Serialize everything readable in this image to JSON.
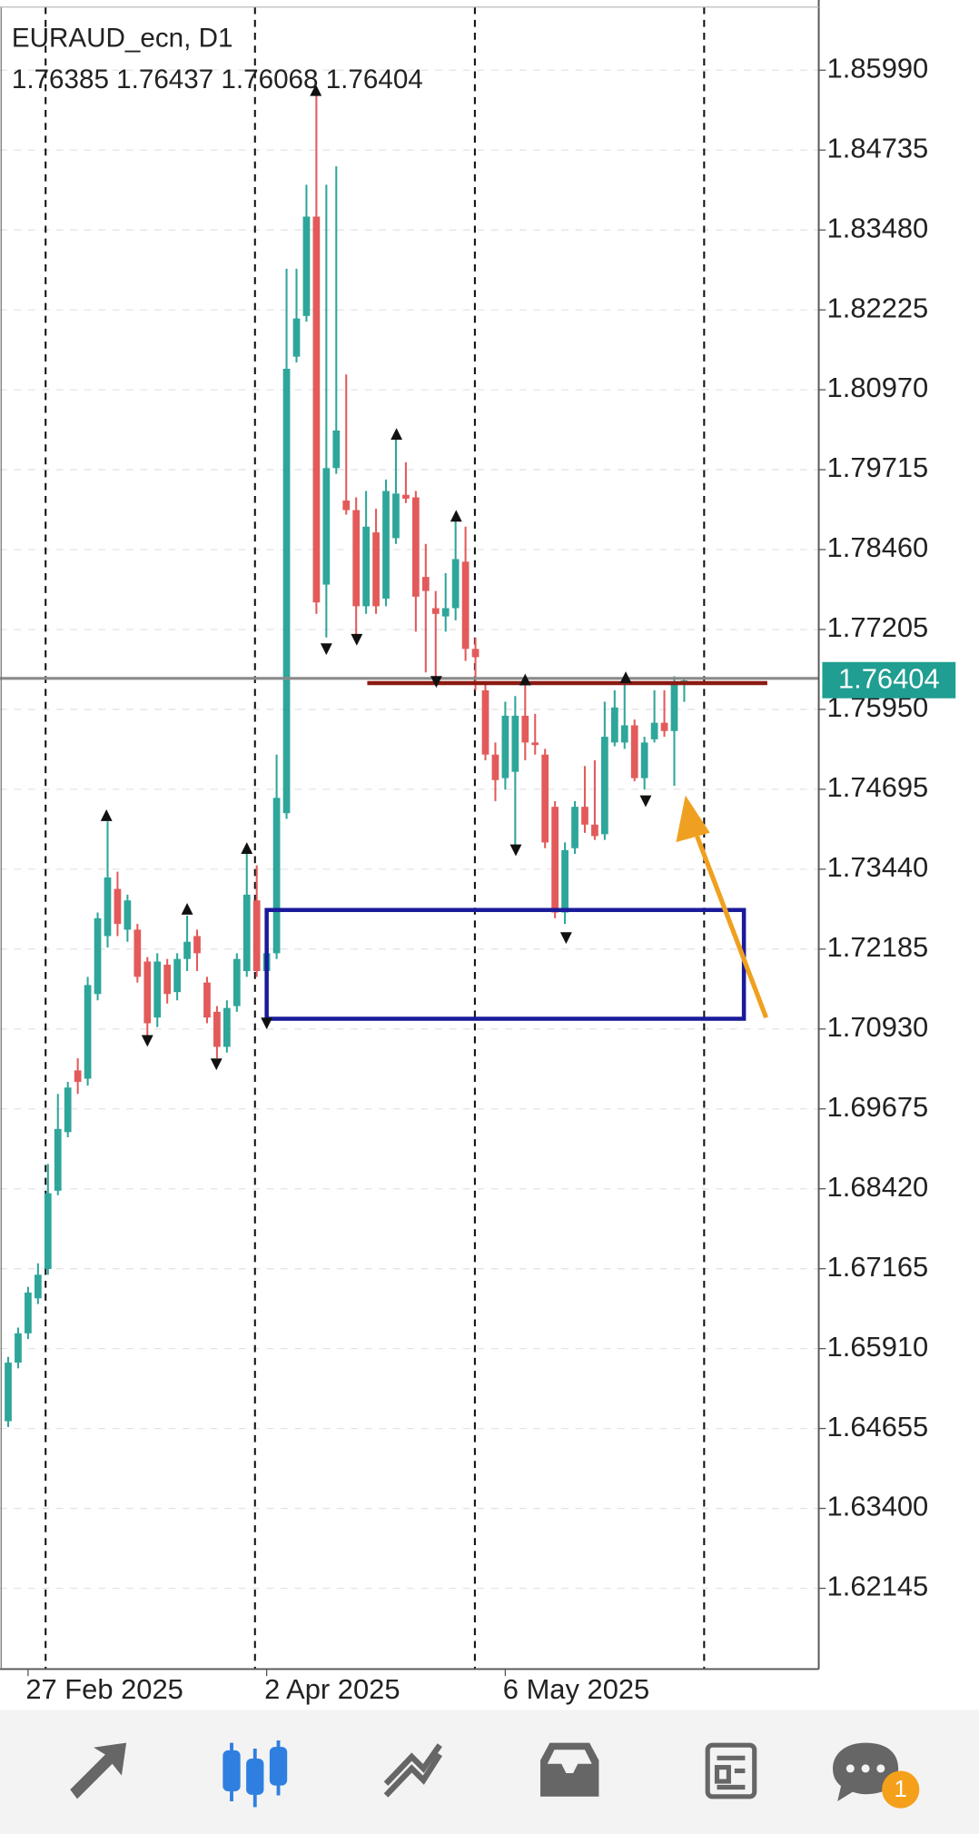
{
  "chart_data": {
    "type": "candlestick",
    "title": "EURAUD_ecn, D1",
    "categories": [
      null,
      null,
      "27 Feb 2025",
      null,
      null,
      null,
      null,
      null,
      null,
      null,
      null,
      null,
      null,
      null,
      null,
      null,
      null,
      null,
      null,
      null,
      null,
      null,
      null,
      null,
      null,
      null,
      "2 Apr 2025",
      null,
      null,
      null,
      null,
      null,
      null,
      null,
      null,
      null,
      null,
      null,
      null,
      null,
      null,
      null,
      null,
      null,
      null,
      null,
      null,
      null,
      null,
      null,
      "6 May 2025",
      null,
      null,
      null,
      null,
      null,
      null,
      null,
      null,
      null,
      null,
      null,
      null,
      null,
      null,
      null,
      null,
      null,
      null
    ],
    "open": [
      1.6477,
      1.6569,
      1.6615,
      1.667,
      1.6716,
      1.6839,
      1.6931,
      1.7028,
      1.7015,
      1.7148,
      1.7239,
      1.7313,
      1.7249,
      1.7249,
      1.7199,
      1.7111,
      1.7194,
      1.7151,
      1.7203,
      1.7239,
      1.7166,
      1.712,
      1.7065,
      1.7129,
      1.7184,
      1.7295,
      1.7184,
      1.7212,
      1.7432,
      1.8149,
      1.8213,
      1.8369,
      1.7791,
      1.7974,
      1.7923,
      1.7908,
      1.7757,
      1.7873,
      1.7769,
      1.7864,
      1.7932,
      1.7928,
      1.7803,
      1.7754,
      1.7741,
      1.7754,
      1.7827,
      1.769,
      1.7625,
      1.7524,
      1.7487,
      1.7497,
      1.7585,
      1.7543,
      1.7524,
      1.7442,
      1.7276,
      1.7377,
      1.7442,
      1.7414,
      1.7399,
      1.7543,
      1.7543,
      1.757,
      1.7487,
      1.7548,
      1.7574,
      1.7561,
      1.76385
    ],
    "high": [
      1.6578,
      1.6624,
      1.6688,
      1.6725,
      1.6881,
      1.6991,
      1.701,
      1.7047,
      1.7175,
      1.7276,
      1.7419,
      1.734,
      1.7304,
      1.7258,
      1.7206,
      1.7212,
      1.7203,
      1.7212,
      1.7271,
      1.7249,
      1.7175,
      1.7129,
      1.7138,
      1.7212,
      1.7368,
      1.735,
      1.7276,
      1.7524,
      1.8287,
      1.8287,
      1.8419,
      1.8562,
      1.8419,
      1.8448,
      1.8121,
      1.7928,
      1.7938,
      1.791,
      1.7956,
      1.802,
      1.7983,
      1.7938,
      1.7855,
      1.7781,
      1.7809,
      1.7901,
      1.7882,
      1.7708,
      1.7634,
      1.7543,
      1.7607,
      1.7616,
      1.7644,
      1.7588,
      1.7533,
      1.7451,
      1.7386,
      1.7451,
      1.7506,
      1.7515,
      1.7607,
      1.7625,
      1.7634,
      1.7579,
      1.7552,
      1.7625,
      1.7625,
      1.7647,
      1.76437
    ],
    "low": [
      1.6468,
      1.656,
      1.6606,
      1.6661,
      1.6707,
      1.6832,
      1.6923,
      1.6991,
      1.7004,
      1.7138,
      1.7221,
      1.7239,
      1.723,
      1.7166,
      1.7083,
      1.7096,
      1.7133,
      1.7138,
      1.7184,
      1.7184,
      1.7102,
      1.7047,
      1.7056,
      1.712,
      1.7175,
      1.7175,
      1.7111,
      1.7203,
      1.7423,
      1.814,
      1.8204,
      1.7745,
      1.7708,
      1.7965,
      1.7901,
      1.7708,
      1.7745,
      1.7745,
      1.7757,
      1.7855,
      1.7919,
      1.7717,
      1.7653,
      1.7644,
      1.7717,
      1.7735,
      1.7671,
      1.7625,
      1.7515,
      1.7451,
      1.7469,
      1.7377,
      1.7515,
      1.7524,
      1.7377,
      1.7267,
      1.7258,
      1.7368,
      1.7401,
      1.739,
      1.739,
      1.7537,
      1.7533,
      1.7482,
      1.7469,
      1.7543,
      1.7552,
      1.7475,
      1.76068
    ],
    "close": [
      1.6569,
      1.6615,
      1.6679,
      1.6707,
      1.6835,
      1.6936,
      1.7001,
      1.701,
      1.7162,
      1.7267,
      1.7331,
      1.7258,
      1.7295,
      1.7175,
      1.7102,
      1.7199,
      1.7148,
      1.7203,
      1.723,
      1.7212,
      1.7111,
      1.7065,
      1.7126,
      1.7203,
      1.7304,
      1.7184,
      1.7212,
      1.7456,
      1.813,
      1.8209,
      1.8369,
      1.7763,
      1.7974,
      1.8033,
      1.7908,
      1.7757,
      1.7882,
      1.7757,
      1.7938,
      1.7934,
      1.7926,
      1.7772,
      1.7781,
      1.7745,
      1.7754,
      1.7831,
      1.769,
      1.7677,
      1.7524,
      1.7484,
      1.7585,
      1.7585,
      1.7543,
      1.7539,
      1.7386,
      1.7276,
      1.7374,
      1.7442,
      1.7414,
      1.7396,
      1.7552,
      1.7598,
      1.757,
      1.7487,
      1.7543,
      1.7574,
      1.7561,
      1.7634,
      1.76404
    ],
    "up_color": "#2ea69a",
    "down_color": "#e35a5a",
    "last_price_color": "#1f9e91",
    "ylim": [
      1.60913,
      1.86982
    ],
    "yticks": [
      {
        "value": 1.8599,
        "label": "1.85990"
      },
      1.84735,
      {
        "value": 1.8348,
        "label": "1.83480"
      },
      1.82225,
      {
        "value": 1.8097,
        "label": "1.80970"
      },
      1.79715,
      {
        "value": 1.7846,
        "label": "1.78460"
      },
      1.77205,
      {
        "value": 1.7595,
        "label": "1.75950"
      },
      1.74695,
      {
        "value": 1.7344,
        "label": "1.73440"
      },
      1.72185,
      {
        "value": 1.7093,
        "label": "1.70930"
      },
      1.69675,
      {
        "value": 1.6842,
        "label": "1.68420"
      },
      1.67165,
      {
        "value": 1.6591,
        "label": "1.65910"
      },
      1.64655,
      {
        "value": 1.634,
        "label": "1.63400"
      },
      1.62145
    ],
    "grid": true
  },
  "nav": {
    "badge": "1"
  }
}
